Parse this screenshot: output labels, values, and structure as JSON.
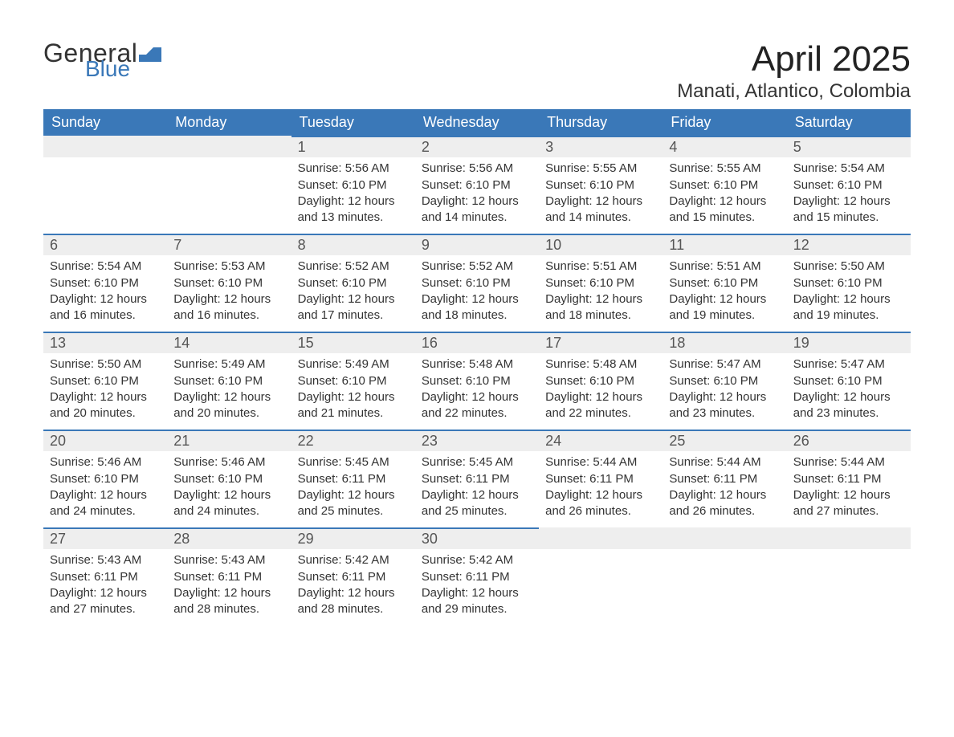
{
  "logo": {
    "word1": "General",
    "word2": "Blue",
    "word1_color": "#333333",
    "word2_color": "#3a78b8",
    "icon_color": "#3a78b8"
  },
  "title": {
    "month": "April 2025",
    "location": "Manati, Atlantico, Colombia"
  },
  "colors": {
    "header_bg": "#3a78b8",
    "header_text": "#ffffff",
    "daybar_bg": "#eeeeee",
    "daybar_border": "#3a78b8",
    "body_text": "#333333",
    "page_bg": "#ffffff"
  },
  "weekdays": [
    "Sunday",
    "Monday",
    "Tuesday",
    "Wednesday",
    "Thursday",
    "Friday",
    "Saturday"
  ],
  "labels": {
    "sunrise": "Sunrise: ",
    "sunset": "Sunset: ",
    "daylight_prefix": "Daylight: ",
    "daylight_join": " and ",
    "daylight_suffix": "."
  },
  "weeks": [
    [
      null,
      null,
      {
        "n": "1",
        "sunrise": "5:56 AM",
        "sunset": "6:10 PM",
        "dl_h": "12 hours",
        "dl_m": "13 minutes"
      },
      {
        "n": "2",
        "sunrise": "5:56 AM",
        "sunset": "6:10 PM",
        "dl_h": "12 hours",
        "dl_m": "14 minutes"
      },
      {
        "n": "3",
        "sunrise": "5:55 AM",
        "sunset": "6:10 PM",
        "dl_h": "12 hours",
        "dl_m": "14 minutes"
      },
      {
        "n": "4",
        "sunrise": "5:55 AM",
        "sunset": "6:10 PM",
        "dl_h": "12 hours",
        "dl_m": "15 minutes"
      },
      {
        "n": "5",
        "sunrise": "5:54 AM",
        "sunset": "6:10 PM",
        "dl_h": "12 hours",
        "dl_m": "15 minutes"
      }
    ],
    [
      {
        "n": "6",
        "sunrise": "5:54 AM",
        "sunset": "6:10 PM",
        "dl_h": "12 hours",
        "dl_m": "16 minutes"
      },
      {
        "n": "7",
        "sunrise": "5:53 AM",
        "sunset": "6:10 PM",
        "dl_h": "12 hours",
        "dl_m": "16 minutes"
      },
      {
        "n": "8",
        "sunrise": "5:52 AM",
        "sunset": "6:10 PM",
        "dl_h": "12 hours",
        "dl_m": "17 minutes"
      },
      {
        "n": "9",
        "sunrise": "5:52 AM",
        "sunset": "6:10 PM",
        "dl_h": "12 hours",
        "dl_m": "18 minutes"
      },
      {
        "n": "10",
        "sunrise": "5:51 AM",
        "sunset": "6:10 PM",
        "dl_h": "12 hours",
        "dl_m": "18 minutes"
      },
      {
        "n": "11",
        "sunrise": "5:51 AM",
        "sunset": "6:10 PM",
        "dl_h": "12 hours",
        "dl_m": "19 minutes"
      },
      {
        "n": "12",
        "sunrise": "5:50 AM",
        "sunset": "6:10 PM",
        "dl_h": "12 hours",
        "dl_m": "19 minutes"
      }
    ],
    [
      {
        "n": "13",
        "sunrise": "5:50 AM",
        "sunset": "6:10 PM",
        "dl_h": "12 hours",
        "dl_m": "20 minutes"
      },
      {
        "n": "14",
        "sunrise": "5:49 AM",
        "sunset": "6:10 PM",
        "dl_h": "12 hours",
        "dl_m": "20 minutes"
      },
      {
        "n": "15",
        "sunrise": "5:49 AM",
        "sunset": "6:10 PM",
        "dl_h": "12 hours",
        "dl_m": "21 minutes"
      },
      {
        "n": "16",
        "sunrise": "5:48 AM",
        "sunset": "6:10 PM",
        "dl_h": "12 hours",
        "dl_m": "22 minutes"
      },
      {
        "n": "17",
        "sunrise": "5:48 AM",
        "sunset": "6:10 PM",
        "dl_h": "12 hours",
        "dl_m": "22 minutes"
      },
      {
        "n": "18",
        "sunrise": "5:47 AM",
        "sunset": "6:10 PM",
        "dl_h": "12 hours",
        "dl_m": "23 minutes"
      },
      {
        "n": "19",
        "sunrise": "5:47 AM",
        "sunset": "6:10 PM",
        "dl_h": "12 hours",
        "dl_m": "23 minutes"
      }
    ],
    [
      {
        "n": "20",
        "sunrise": "5:46 AM",
        "sunset": "6:10 PM",
        "dl_h": "12 hours",
        "dl_m": "24 minutes"
      },
      {
        "n": "21",
        "sunrise": "5:46 AM",
        "sunset": "6:10 PM",
        "dl_h": "12 hours",
        "dl_m": "24 minutes"
      },
      {
        "n": "22",
        "sunrise": "5:45 AM",
        "sunset": "6:11 PM",
        "dl_h": "12 hours",
        "dl_m": "25 minutes"
      },
      {
        "n": "23",
        "sunrise": "5:45 AM",
        "sunset": "6:11 PM",
        "dl_h": "12 hours",
        "dl_m": "25 minutes"
      },
      {
        "n": "24",
        "sunrise": "5:44 AM",
        "sunset": "6:11 PM",
        "dl_h": "12 hours",
        "dl_m": "26 minutes"
      },
      {
        "n": "25",
        "sunrise": "5:44 AM",
        "sunset": "6:11 PM",
        "dl_h": "12 hours",
        "dl_m": "26 minutes"
      },
      {
        "n": "26",
        "sunrise": "5:44 AM",
        "sunset": "6:11 PM",
        "dl_h": "12 hours",
        "dl_m": "27 minutes"
      }
    ],
    [
      {
        "n": "27",
        "sunrise": "5:43 AM",
        "sunset": "6:11 PM",
        "dl_h": "12 hours",
        "dl_m": "27 minutes"
      },
      {
        "n": "28",
        "sunrise": "5:43 AM",
        "sunset": "6:11 PM",
        "dl_h": "12 hours",
        "dl_m": "28 minutes"
      },
      {
        "n": "29",
        "sunrise": "5:42 AM",
        "sunset": "6:11 PM",
        "dl_h": "12 hours",
        "dl_m": "28 minutes"
      },
      {
        "n": "30",
        "sunrise": "5:42 AM",
        "sunset": "6:11 PM",
        "dl_h": "12 hours",
        "dl_m": "29 minutes"
      },
      null,
      null,
      null
    ]
  ]
}
